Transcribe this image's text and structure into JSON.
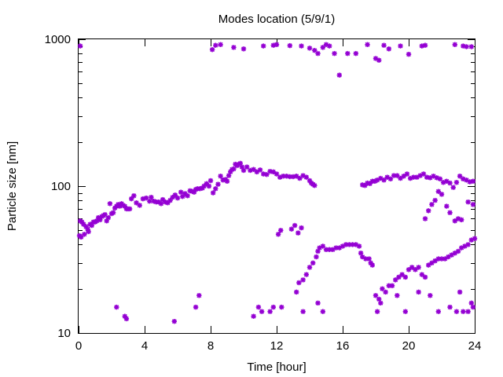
{
  "chart_data": {
    "type": "scatter",
    "title": "Modes location (5/9/1)",
    "xlabel": "Time [hour]",
    "ylabel": "Particle size [nm]",
    "xlim": [
      0,
      24
    ],
    "ylim": [
      10,
      1000
    ],
    "yscale": "log",
    "x_ticks": [
      0,
      4,
      8,
      12,
      16,
      20,
      24
    ],
    "x_tick_labels": [
      "0",
      "4",
      "8",
      "12",
      "16",
      "20",
      "24"
    ],
    "y_ticks": [
      10,
      100,
      1000
    ],
    "y_tick_labels": [
      "10",
      "100",
      "1000"
    ],
    "grid": false,
    "legend": "none",
    "marker": "star",
    "color": "#9400D3",
    "points": [
      [
        0.05,
        46
      ],
      [
        0.1,
        58
      ],
      [
        0.15,
        45
      ],
      [
        0.2,
        57
      ],
      [
        0.3,
        55
      ],
      [
        0.35,
        47
      ],
      [
        0.45,
        53
      ],
      [
        0.55,
        51
      ],
      [
        0.6,
        49
      ],
      [
        0.7,
        55
      ],
      [
        0.8,
        54
      ],
      [
        0.9,
        57
      ],
      [
        1.0,
        57
      ],
      [
        1.1,
        58
      ],
      [
        1.2,
        61
      ],
      [
        1.3,
        59
      ],
      [
        1.4,
        62
      ],
      [
        1.5,
        63
      ],
      [
        1.6,
        64
      ],
      [
        1.7,
        58
      ],
      [
        1.8,
        61
      ],
      [
        1.9,
        76
      ],
      [
        2.0,
        65
      ],
      [
        2.1,
        66
      ],
      [
        2.2,
        71
      ],
      [
        2.3,
        73
      ],
      [
        2.4,
        75
      ],
      [
        2.5,
        73
      ],
      [
        2.6,
        76
      ],
      [
        2.7,
        74
      ],
      [
        2.8,
        73
      ],
      [
        2.9,
        70
      ],
      [
        3.0,
        70
      ],
      [
        3.1,
        70
      ],
      [
        3.2,
        82
      ],
      [
        3.35,
        86
      ],
      [
        3.5,
        77
      ],
      [
        3.7,
        74
      ],
      [
        3.9,
        82
      ],
      [
        4.1,
        83
      ],
      [
        4.3,
        79
      ],
      [
        4.4,
        84
      ],
      [
        4.55,
        79
      ],
      [
        4.7,
        78
      ],
      [
        4.85,
        78
      ],
      [
        5.0,
        76
      ],
      [
        5.1,
        81
      ],
      [
        5.25,
        78
      ],
      [
        5.4,
        77
      ],
      [
        5.55,
        80
      ],
      [
        5.7,
        84
      ],
      [
        5.85,
        87
      ],
      [
        6.0,
        83
      ],
      [
        6.2,
        91
      ],
      [
        6.3,
        85
      ],
      [
        6.45,
        89
      ],
      [
        6.6,
        86
      ],
      [
        6.75,
        93
      ],
      [
        6.9,
        92
      ],
      [
        7.0,
        91
      ],
      [
        7.1,
        95
      ],
      [
        7.2,
        96
      ],
      [
        7.35,
        96
      ],
      [
        7.5,
        97
      ],
      [
        7.6,
        100
      ],
      [
        7.75,
        104
      ],
      [
        7.9,
        100
      ],
      [
        8.0,
        109
      ],
      [
        8.15,
        90
      ],
      [
        8.3,
        96
      ],
      [
        8.45,
        103
      ],
      [
        8.6,
        117
      ],
      [
        8.75,
        110
      ],
      [
        8.9,
        111
      ],
      [
        9.0,
        108
      ],
      [
        9.1,
        118
      ],
      [
        9.2,
        125
      ],
      [
        9.3,
        130
      ],
      [
        9.4,
        131
      ],
      [
        9.5,
        141
      ],
      [
        9.6,
        138
      ],
      [
        9.7,
        141
      ],
      [
        9.8,
        143
      ],
      [
        9.9,
        135
      ],
      [
        10.0,
        128
      ],
      [
        10.2,
        135
      ],
      [
        10.4,
        128
      ],
      [
        10.6,
        130
      ],
      [
        10.8,
        125
      ],
      [
        11.0,
        129
      ],
      [
        11.2,
        121
      ],
      [
        11.4,
        120
      ],
      [
        11.6,
        126
      ],
      [
        11.8,
        125
      ],
      [
        12.0,
        121
      ],
      [
        12.2,
        115
      ],
      [
        12.4,
        117
      ],
      [
        12.6,
        117
      ],
      [
        12.8,
        116
      ],
      [
        13.0,
        116
      ],
      [
        13.2,
        117
      ],
      [
        13.4,
        113
      ],
      [
        13.6,
        118
      ],
      [
        13.8,
        115
      ],
      [
        14.0,
        109
      ],
      [
        14.1,
        105
      ],
      [
        14.2,
        103
      ],
      [
        14.3,
        101
      ],
      [
        17.2,
        102
      ],
      [
        17.35,
        101
      ],
      [
        17.5,
        105
      ],
      [
        17.65,
        104
      ],
      [
        17.8,
        108
      ],
      [
        17.95,
        108
      ],
      [
        18.1,
        110
      ],
      [
        18.3,
        113
      ],
      [
        18.5,
        110
      ],
      [
        18.7,
        115
      ],
      [
        18.9,
        112
      ],
      [
        19.1,
        118
      ],
      [
        19.3,
        118
      ],
      [
        19.5,
        113
      ],
      [
        19.7,
        117
      ],
      [
        19.9,
        121
      ],
      [
        20.1,
        113
      ],
      [
        20.3,
        115
      ],
      [
        20.5,
        115
      ],
      [
        20.7,
        118
      ],
      [
        20.9,
        121
      ],
      [
        21.1,
        115
      ],
      [
        21.3,
        114
      ],
      [
        21.5,
        117
      ],
      [
        21.7,
        114
      ],
      [
        21.9,
        112
      ],
      [
        22.1,
        106
      ],
      [
        22.3,
        108
      ],
      [
        22.5,
        105
      ],
      [
        22.7,
        98
      ],
      [
        22.9,
        106
      ],
      [
        23.1,
        117
      ],
      [
        23.3,
        112
      ],
      [
        23.5,
        110
      ],
      [
        23.7,
        107
      ],
      [
        23.9,
        108
      ],
      [
        21.0,
        60
      ],
      [
        21.2,
        68
      ],
      [
        21.4,
        75
      ],
      [
        21.6,
        80
      ],
      [
        21.8,
        92
      ],
      [
        22.0,
        88
      ],
      [
        22.3,
        73
      ],
      [
        22.5,
        66
      ],
      [
        22.8,
        58
      ],
      [
        23.0,
        60
      ],
      [
        23.2,
        59
      ],
      [
        23.6,
        78
      ],
      [
        23.9,
        75
      ],
      [
        12.1,
        47
      ],
      [
        12.25,
        50
      ],
      [
        12.9,
        51
      ],
      [
        13.1,
        54
      ],
      [
        13.3,
        48
      ],
      [
        13.5,
        52
      ],
      [
        13.2,
        19
      ],
      [
        13.35,
        22
      ],
      [
        13.6,
        23
      ],
      [
        13.8,
        25
      ],
      [
        14.0,
        28
      ],
      [
        14.2,
        30
      ],
      [
        14.4,
        33
      ],
      [
        14.5,
        36
      ],
      [
        14.6,
        38
      ],
      [
        14.8,
        39
      ],
      [
        15.0,
        37
      ],
      [
        15.2,
        37
      ],
      [
        15.4,
        37
      ],
      [
        15.6,
        38
      ],
      [
        15.8,
        38
      ],
      [
        16.0,
        39
      ],
      [
        16.2,
        40
      ],
      [
        16.4,
        40
      ],
      [
        16.6,
        40
      ],
      [
        16.8,
        40
      ],
      [
        17.0,
        39
      ],
      [
        17.1,
        35
      ],
      [
        17.2,
        33
      ],
      [
        17.4,
        32
      ],
      [
        17.6,
        32
      ],
      [
        17.7,
        30
      ],
      [
        17.8,
        29
      ],
      [
        18.0,
        18
      ],
      [
        18.2,
        17
      ],
      [
        18.4,
        20
      ],
      [
        18.6,
        19
      ],
      [
        18.8,
        21
      ],
      [
        19.0,
        21
      ],
      [
        19.2,
        23
      ],
      [
        19.4,
        24
      ],
      [
        19.6,
        25
      ],
      [
        19.8,
        24
      ],
      [
        20.0,
        27
      ],
      [
        20.2,
        28
      ],
      [
        20.4,
        27
      ],
      [
        20.6,
        28
      ],
      [
        20.8,
        25
      ],
      [
        21.0,
        24
      ],
      [
        21.2,
        29
      ],
      [
        21.4,
        30
      ],
      [
        21.6,
        31
      ],
      [
        21.8,
        32
      ],
      [
        22.0,
        32
      ],
      [
        22.2,
        32
      ],
      [
        22.4,
        33
      ],
      [
        22.6,
        34
      ],
      [
        22.8,
        35
      ],
      [
        23.0,
        36
      ],
      [
        23.2,
        38
      ],
      [
        23.4,
        39
      ],
      [
        23.6,
        40
      ],
      [
        23.8,
        43
      ],
      [
        24.0,
        44
      ],
      [
        18.1,
        14
      ],
      [
        18.3,
        16
      ],
      [
        19.3,
        18
      ],
      [
        20.6,
        19
      ],
      [
        21.3,
        18
      ],
      [
        21.8,
        14
      ],
      [
        22.5,
        15
      ],
      [
        22.9,
        14
      ],
      [
        23.1,
        19
      ],
      [
        23.3,
        14
      ],
      [
        23.6,
        14
      ],
      [
        23.8,
        16
      ],
      [
        23.9,
        15
      ],
      [
        2.3,
        15
      ],
      [
        2.8,
        13
      ],
      [
        2.9,
        12.5
      ],
      [
        5.8,
        12
      ],
      [
        7.1,
        15
      ],
      [
        7.3,
        18
      ],
      [
        10.6,
        13
      ],
      [
        10.9,
        15
      ],
      [
        11.1,
        14
      ],
      [
        11.6,
        14
      ],
      [
        11.8,
        15
      ],
      [
        12.3,
        15
      ],
      [
        13.6,
        14
      ],
      [
        14.5,
        16
      ],
      [
        14.8,
        14
      ],
      [
        19.8,
        14
      ],
      [
        0.1,
        900
      ],
      [
        8.1,
        850
      ],
      [
        8.3,
        910
      ],
      [
        8.6,
        920
      ],
      [
        9.4,
        880
      ],
      [
        10.0,
        860
      ],
      [
        11.2,
        900
      ],
      [
        11.8,
        910
      ],
      [
        12.0,
        920
      ],
      [
        12.8,
        905
      ],
      [
        13.5,
        900
      ],
      [
        14.0,
        870
      ],
      [
        14.3,
        840
      ],
      [
        14.5,
        800
      ],
      [
        14.8,
        880
      ],
      [
        15.0,
        920
      ],
      [
        15.2,
        900
      ],
      [
        15.5,
        800
      ],
      [
        15.8,
        570
      ],
      [
        16.3,
        800
      ],
      [
        16.8,
        800
      ],
      [
        17.5,
        920
      ],
      [
        18.0,
        740
      ],
      [
        18.2,
        720
      ],
      [
        18.5,
        910
      ],
      [
        18.8,
        860
      ],
      [
        19.5,
        900
      ],
      [
        20.0,
        790
      ],
      [
        20.8,
        900
      ],
      [
        21.0,
        910
      ],
      [
        22.8,
        920
      ],
      [
        23.3,
        900
      ],
      [
        23.5,
        890
      ],
      [
        23.8,
        890
      ]
    ]
  }
}
